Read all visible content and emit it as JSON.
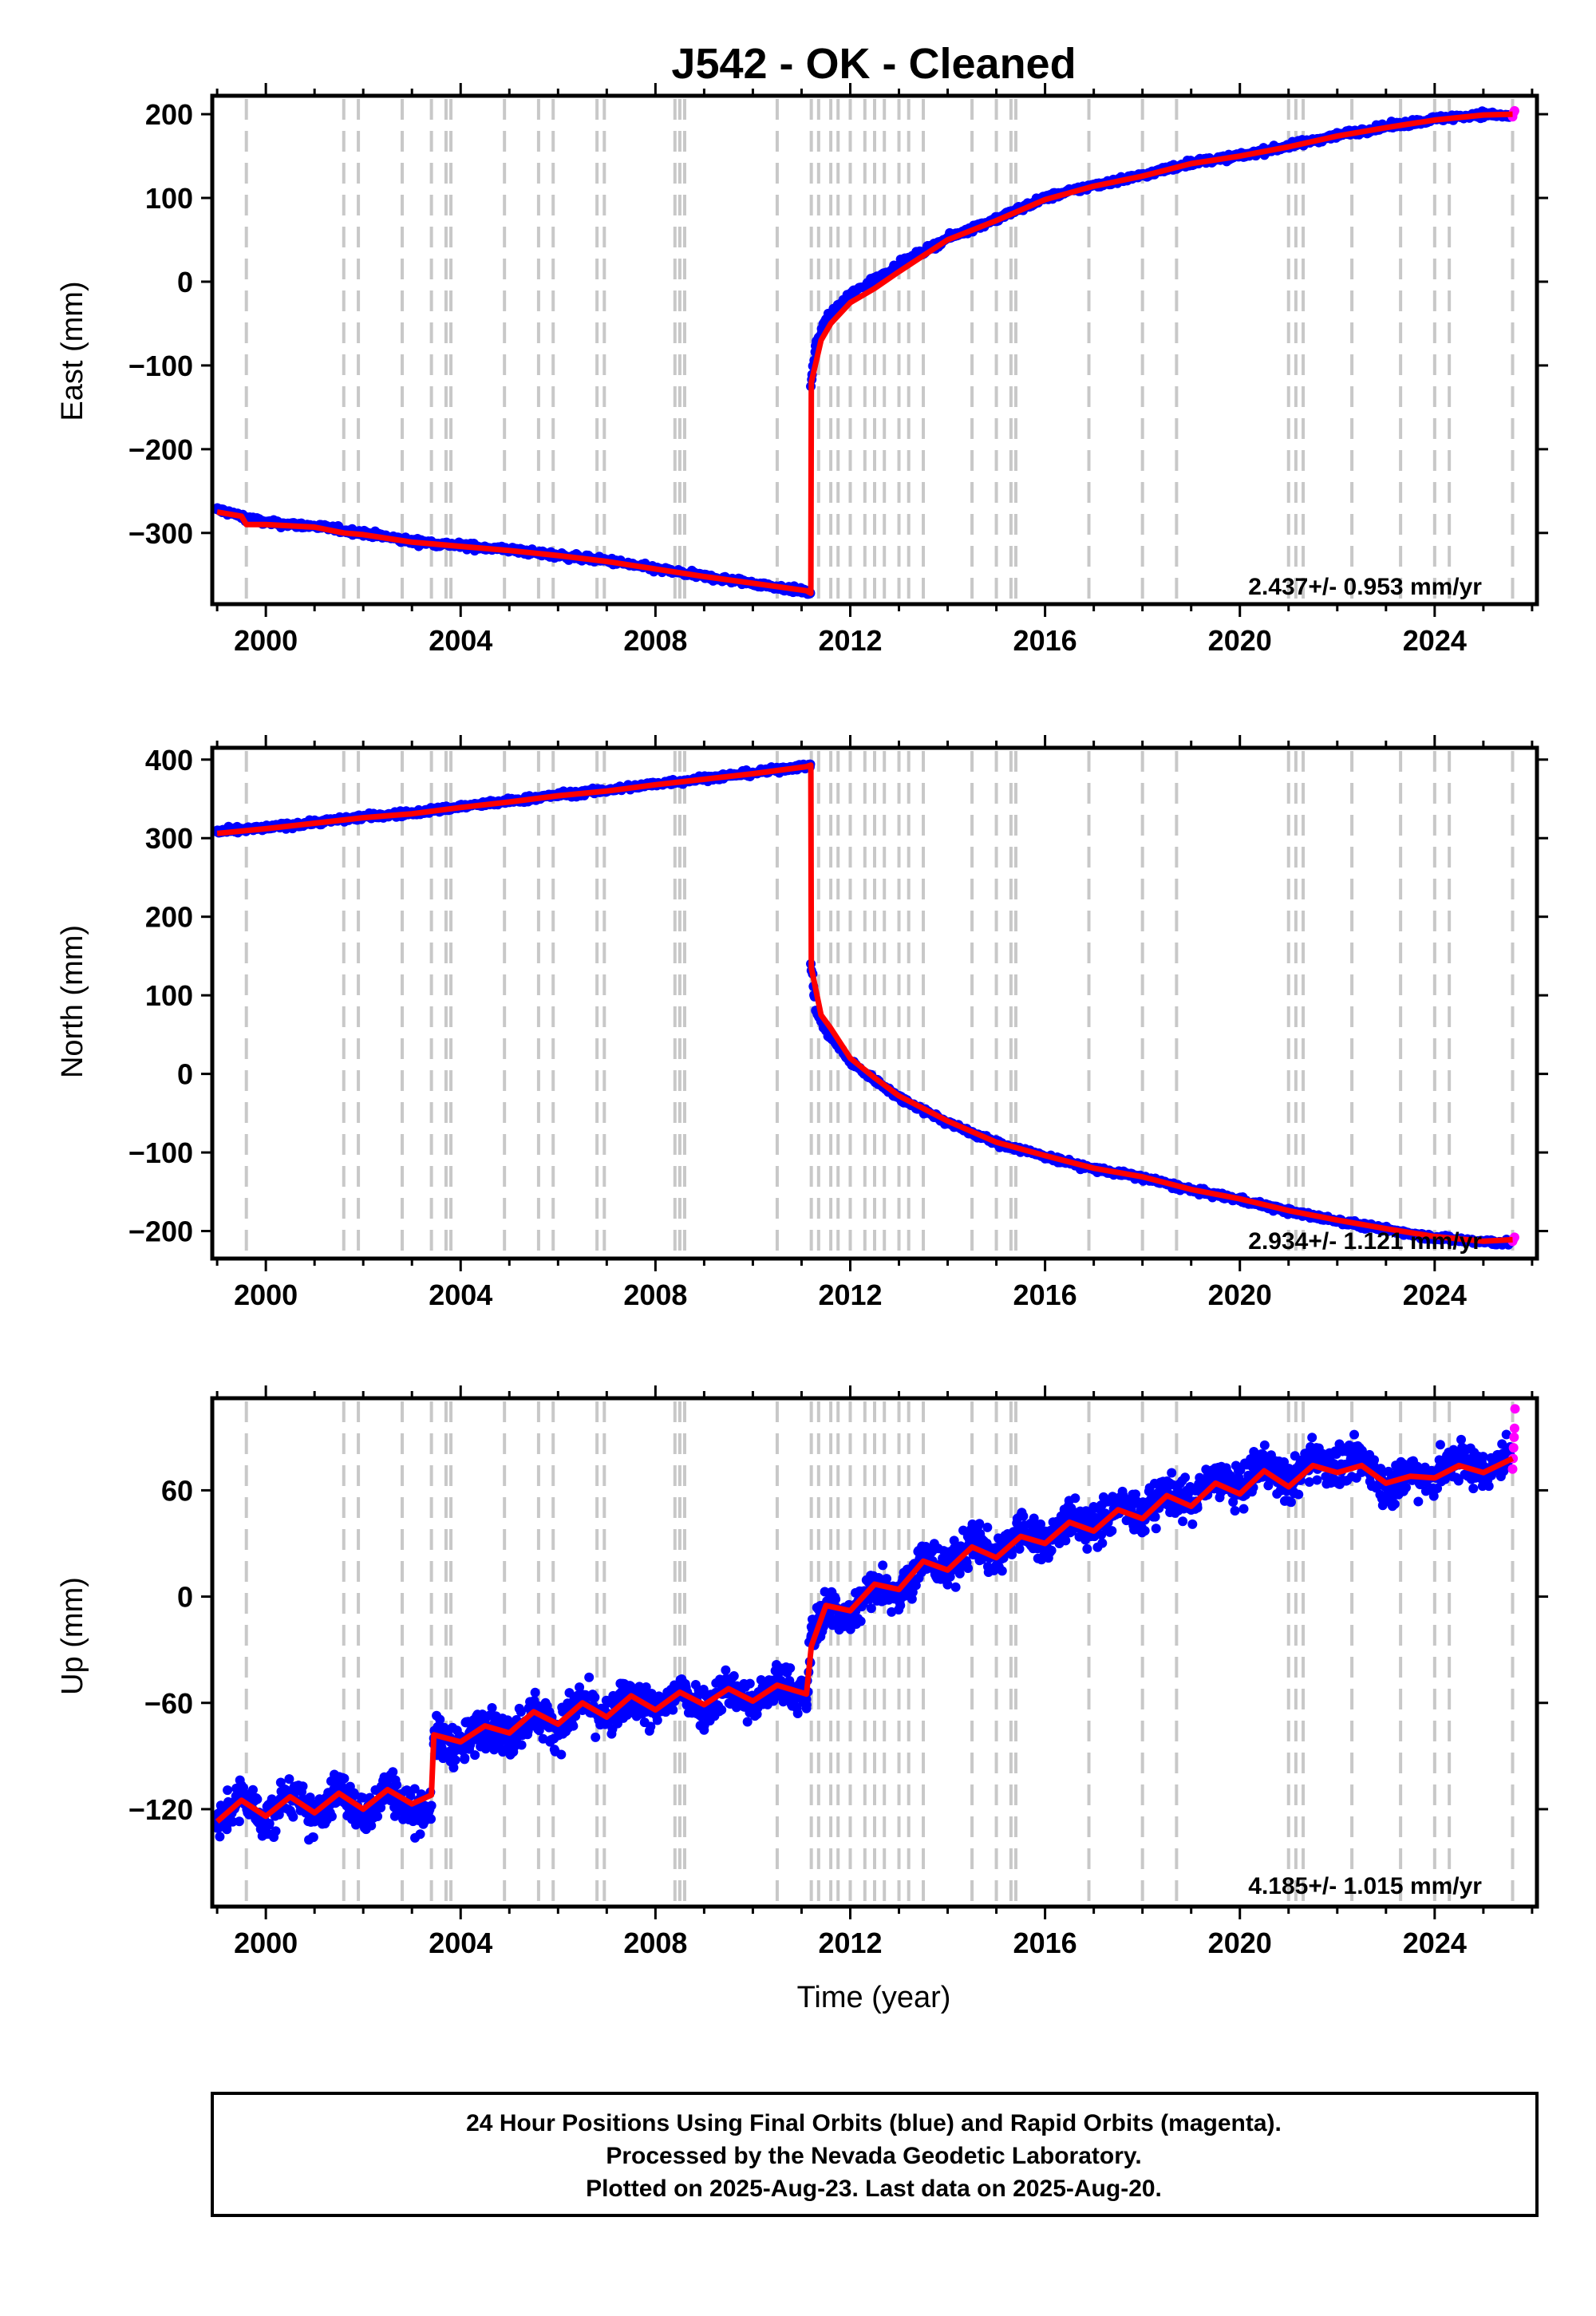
{
  "chart_data": {
    "type": "scatter",
    "title": "J542  - OK - Cleaned",
    "xlabel": "Time (year)",
    "xlim": [
      1998.9,
      2026.1
    ],
    "x_ticks": [
      "2000",
      "2004",
      "2008",
      "2012",
      "2016",
      "2020",
      "2024"
    ],
    "event_lines_years": [
      1999.6,
      2001.6,
      2001.9,
      2002.8,
      2003.4,
      2003.7,
      2003.8,
      2004.9,
      2005.6,
      2005.9,
      2006.8,
      2006.95,
      2008.4,
      2008.5,
      2008.6,
      2010.5,
      2011.2,
      2011.35,
      2011.6,
      2011.75,
      2012.0,
      2012.3,
      2012.5,
      2012.7,
      2013.0,
      2013.2,
      2013.5,
      2014.5,
      2015.0,
      2015.3,
      2015.4,
      2016.9,
      2018.0,
      2018.7,
      2021.0,
      2021.15,
      2021.3,
      2022.3,
      2023.3,
      2024.0,
      2024.3,
      2025.6
    ],
    "legend": "none",
    "panels": [
      {
        "name": "east",
        "ylabel": "East (mm)",
        "ylim": [
          -385,
          222
        ],
        "y_ticks": [
          "200",
          "100",
          "0",
          "-100",
          "-200",
          "-300"
        ],
        "rate_label": "2.437+/- 0.953 mm/yr",
        "series": [
          {
            "name": "Final Orbits (blue)",
            "color": "#0000ff",
            "x": [
              1999.0,
              2000.0,
              2001.0,
              2002.0,
              2003.0,
              2004.0,
              2005.0,
              2006.0,
              2007.0,
              2008.0,
              2009.0,
              2010.0,
              2011.1,
              2011.18,
              2011.19,
              2011.3,
              2011.5,
              2012.0,
              2013.0,
              2014.0,
              2015.0,
              2016.0,
              2017.0,
              2018.0,
              2019.0,
              2020.0,
              2021.0,
              2022.0,
              2023.0,
              2024.0,
              2025.0,
              2025.55
            ],
            "y": [
              -272,
              -288,
              -292,
              -300,
              -310,
              -315,
              -320,
              -327,
              -333,
              -343,
              -352,
              -360,
              -370,
              -372,
              -125,
              -75,
              -45,
              -15,
              20,
              52,
              75,
              100,
              115,
              127,
              142,
              150,
              162,
              175,
              185,
              194,
              200,
              198
            ]
          },
          {
            "name": "Rapid Orbits (magenta)",
            "color": "#ff00ff",
            "x": [
              2025.6,
              2025.62,
              2025.64
            ],
            "y": [
              197,
              202,
              204
            ]
          }
        ],
        "trend": {
          "color": "#ff0000",
          "x": [
            1999.0,
            1999.5,
            1999.6,
            2000.0,
            2001.0,
            2001.6,
            2002.0,
            2003.0,
            2003.4,
            2004.0,
            2005.0,
            2006.0,
            2007.0,
            2008.0,
            2009.0,
            2010.0,
            2011.1,
            2011.19,
            2011.2,
            2011.4,
            2011.6,
            2012.0,
            2012.5,
            2013.0,
            2014.0,
            2015.0,
            2016.0,
            2017.0,
            2018.0,
            2019.0,
            2020.0,
            2021.0,
            2022.0,
            2023.0,
            2024.0,
            2025.0,
            2025.6
          ],
          "y": [
            -275,
            -280,
            -290,
            -290,
            -293,
            -300,
            -302,
            -311,
            -313,
            -316,
            -321,
            -327,
            -334,
            -343,
            -352,
            -360,
            -369,
            -372,
            -120,
            -70,
            -50,
            -25,
            -8,
            12,
            50,
            73,
            98,
            114,
            126,
            141,
            150,
            161,
            174,
            184,
            193,
            199,
            200
          ]
        }
      },
      {
        "name": "north",
        "ylabel": "North (mm)",
        "ylim": [
          -235,
          415
        ],
        "y_ticks": [
          "400",
          "300",
          "200",
          "100",
          "0",
          "-100",
          "-200"
        ],
        "rate_label": "2.934+/- 1.121 mm/yr",
        "series": [
          {
            "name": "Final Orbits (blue)",
            "color": "#0000ff",
            "x": [
              1999.0,
              2000.0,
              2001.0,
              2002.0,
              2003.0,
              2004.0,
              2005.0,
              2006.0,
              2007.0,
              2008.0,
              2009.0,
              2010.0,
              2011.1,
              2011.18,
              2011.19,
              2011.3,
              2011.5,
              2012.0,
              2013.0,
              2014.0,
              2015.0,
              2016.0,
              2017.0,
              2018.0,
              2019.0,
              2020.0,
              2021.0,
              2022.0,
              2023.0,
              2024.0,
              2025.0,
              2025.55
            ],
            "y": [
              308,
              313,
              320,
              327,
              332,
              340,
              347,
              355,
              361,
              369,
              376,
              383,
              392,
              394,
              140,
              80,
              55,
              15,
              -30,
              -62,
              -88,
              -105,
              -121,
              -132,
              -148,
              -160,
              -175,
              -187,
              -198,
              -208,
              -214,
              -215
            ]
          },
          {
            "name": "Rapid Orbits (magenta)",
            "color": "#ff00ff",
            "x": [
              2025.6,
              2025.62,
              2025.64
            ],
            "y": [
              -213,
              -210,
              -208
            ]
          }
        ],
        "trend": {
          "color": "#ff0000",
          "x": [
            1999.0,
            2000.0,
            2001.0,
            2002.0,
            2003.0,
            2004.0,
            2005.0,
            2006.0,
            2007.0,
            2008.0,
            2009.0,
            2010.0,
            2011.1,
            2011.19,
            2011.2,
            2011.4,
            2011.6,
            2012.0,
            2012.5,
            2013.0,
            2014.0,
            2015.0,
            2016.0,
            2017.0,
            2018.0,
            2019.0,
            2020.0,
            2021.0,
            2022.0,
            2023.0,
            2024.0,
            2025.0,
            2025.6
          ],
          "y": [
            306,
            312,
            319,
            326,
            331,
            339,
            346,
            354,
            360,
            368,
            375,
            382,
            391,
            393,
            135,
            75,
            58,
            20,
            -5,
            -28,
            -60,
            -87,
            -104,
            -120,
            -131,
            -147,
            -159,
            -174,
            -186,
            -197,
            -207,
            -213,
            -211
          ]
        }
      },
      {
        "name": "up",
        "ylabel": "Up (mm)",
        "ylim": [
          -175,
          112
        ],
        "y_ticks": [
          "60",
          "0",
          "-60",
          "-120"
        ],
        "rate_label": "4.185+/- 1.015 mm/yr",
        "series": [
          {
            "name": "Final Orbits (blue)",
            "color": "#0000ff",
            "x": [
              1999.0,
              1999.5,
              2000.0,
              2000.5,
              2001.0,
              2001.5,
              2002.0,
              2002.5,
              2003.0,
              2003.4,
              2003.45,
              2004.0,
              2004.5,
              2005.0,
              2005.5,
              2006.0,
              2006.5,
              2007.0,
              2007.5,
              2008.0,
              2008.5,
              2009.0,
              2009.5,
              2010.0,
              2010.5,
              2011.1,
              2011.2,
              2011.5,
              2012.0,
              2012.5,
              2013.0,
              2013.5,
              2014.0,
              2014.5,
              2015.0,
              2015.5,
              2016.0,
              2016.5,
              2017.0,
              2017.5,
              2018.0,
              2018.5,
              2019.0,
              2019.5,
              2020.0,
              2020.5,
              2021.0,
              2021.5,
              2022.0,
              2022.5,
              2023.0,
              2023.5,
              2024.0,
              2024.5,
              2025.0,
              2025.55
            ],
            "y": [
              -130,
              -112,
              -128,
              -110,
              -127,
              -108,
              -125,
              -107,
              -122,
              -118,
              -80,
              -85,
              -72,
              -80,
              -65,
              -75,
              -58,
              -70,
              -55,
              -66,
              -52,
              -63,
              -50,
              -62,
              -48,
              -58,
              -22,
              -5,
              -12,
              8,
              2,
              22,
              15,
              32,
              22,
              38,
              30,
              45,
              38,
              52,
              45,
              60,
              52,
              68,
              60,
              76,
              62,
              80,
              72,
              78,
              62,
              70,
              68,
              78,
              70,
              80
            ]
          },
          {
            "name": "Rapid Orbits (magenta)",
            "color": "#ff00ff",
            "x": [
              2025.6,
              2025.61,
              2025.62,
              2025.63,
              2025.64,
              2025.65
            ],
            "y": [
              72,
              78,
              84,
              90,
              95,
              106
            ]
          }
        ],
        "trend": {
          "color": "#ff0000",
          "x": [
            1999.0,
            1999.5,
            2000.0,
            2000.5,
            2001.0,
            2001.5,
            2002.0,
            2002.5,
            2003.0,
            2003.4,
            2003.45,
            2004.0,
            2004.5,
            2005.0,
            2005.5,
            2006.0,
            2006.5,
            2007.0,
            2007.5,
            2008.0,
            2008.5,
            2009.0,
            2009.5,
            2010.0,
            2010.5,
            2011.1,
            2011.2,
            2011.5,
            2012.0,
            2012.5,
            2013.0,
            2013.5,
            2014.0,
            2014.5,
            2015.0,
            2015.5,
            2016.0,
            2016.5,
            2017.0,
            2017.5,
            2018.0,
            2018.5,
            2019.0,
            2019.5,
            2020.0,
            2020.5,
            2021.0,
            2021.5,
            2022.0,
            2022.5,
            2023.0,
            2023.5,
            2024.0,
            2024.5,
            2025.0,
            2025.6
          ],
          "y": [
            -127,
            -115,
            -124,
            -113,
            -122,
            -111,
            -120,
            -109,
            -117,
            -112,
            -78,
            -82,
            -73,
            -77,
            -65,
            -72,
            -60,
            -68,
            -56,
            -64,
            -54,
            -61,
            -52,
            -59,
            -50,
            -55,
            -28,
            -5,
            -8,
            7,
            4,
            20,
            15,
            28,
            22,
            34,
            30,
            42,
            37,
            49,
            44,
            57,
            51,
            64,
            58,
            71,
            62,
            74,
            70,
            74,
            64,
            68,
            67,
            74,
            70,
            78
          ]
        }
      }
    ]
  },
  "caption": {
    "lines": [
      "24 Hour Positions Using Final Orbits (blue) and Rapid Orbits (magenta).",
      "Processed by the Nevada Geodetic Laboratory.",
      "Plotted on 2025-Aug-23. Last data on 2025-Aug-20."
    ]
  }
}
